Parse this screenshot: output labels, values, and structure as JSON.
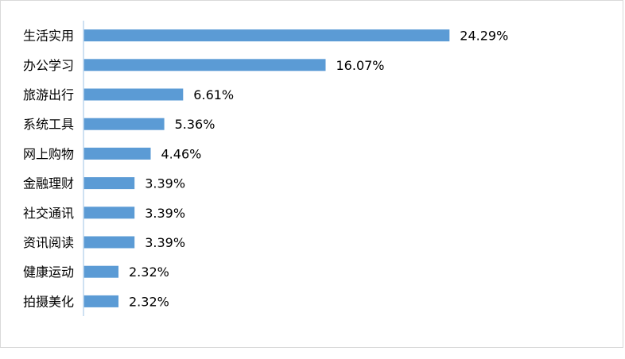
{
  "chart_data": {
    "type": "bar",
    "orientation": "horizontal",
    "categories": [
      "生活实用",
      "办公学习",
      "旅游出行",
      "系统工具",
      "网上购物",
      "金融理财",
      "社交通讯",
      "资讯阅读",
      "健康运动",
      "拍摄美化"
    ],
    "values": [
      24.29,
      16.07,
      6.61,
      5.36,
      4.46,
      3.39,
      3.39,
      3.39,
      2.32,
      2.32
    ],
    "value_labels": [
      "24.29%",
      "16.07%",
      "6.61%",
      "5.36%",
      "4.46%",
      "3.39%",
      "3.39%",
      "3.39%",
      "2.32%",
      "2.32%"
    ],
    "title": "",
    "xlabel": "",
    "ylabel": "",
    "xlim": [
      0,
      25
    ],
    "grid": false,
    "legend": "none",
    "bar_color": "#5b9bd5",
    "axis_color": "#bdd7ee"
  }
}
